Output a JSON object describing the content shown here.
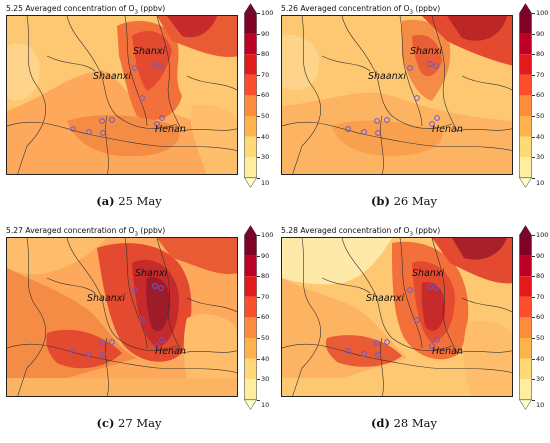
{
  "colorbar": {
    "ticks": [
      "100",
      "90",
      "80",
      "70",
      "60",
      "50",
      "40",
      "30",
      "20",
      "10"
    ],
    "colors": [
      "#ffffcc",
      "#ffeda0",
      "#fed976",
      "#feb24c",
      "#fd8d3c",
      "#fc4e2a",
      "#e31a1c",
      "#bd0026",
      "#800026"
    ]
  },
  "panels": [
    {
      "title_prefix": "5.25 Averaged concentration of O",
      "title_sub": "3",
      "title_suffix": " (ppbv)",
      "caption_letter": "(a)",
      "caption_text": " 25 May",
      "labels": {
        "shaanxi": "Shaanxi",
        "shanxi": "Shanxi",
        "henan": "Henan"
      }
    },
    {
      "title_prefix": "5.26 Averaged concentration of O",
      "title_sub": "3",
      "title_suffix": " (ppbv)",
      "caption_letter": "(b)",
      "caption_text": " 26 May",
      "labels": {
        "shaanxi": "Shaanxi",
        "shanxi": "Shanxi",
        "henan": "Henan"
      }
    },
    {
      "title_prefix": "5.27 Averaged concentration of O",
      "title_sub": "3",
      "title_suffix": " (ppbv)",
      "caption_letter": "(c)",
      "caption_text": " 27 May",
      "labels": {
        "shaanxi": "Shaanxi",
        "shanxi": "Shanxi",
        "henan": "Henan"
      }
    },
    {
      "title_prefix": "5.28 Averaged concentration of O",
      "title_sub": "3",
      "title_suffix": " (ppbv)",
      "caption_letter": "(d)",
      "caption_text": " 28 May",
      "labels": {
        "shaanxi": "Shaanxi",
        "shanxi": "Shanxi",
        "henan": "Henan"
      }
    }
  ]
}
